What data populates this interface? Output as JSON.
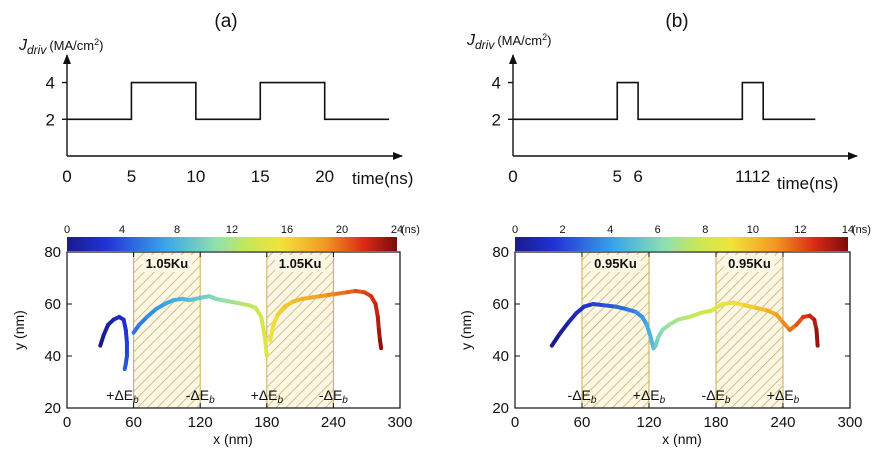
{
  "chart_data": [
    {
      "panel": "(a)",
      "type": "line",
      "ylabel_symbol": "J",
      "ylabel_sub": "driv",
      "ylabel_unit": "(MA/cm",
      "ylabel_sup": "2",
      "ylabel_close": ")",
      "xlabel": "time(ns)",
      "x_ticks": [
        "0",
        "5",
        "10",
        "15",
        "20"
      ],
      "y_ticks": [
        "2",
        "4"
      ],
      "x_range": [
        0,
        26
      ],
      "y_range": [
        0,
        5.5
      ],
      "series": [
        {
          "x": [
            0,
            5,
            5,
            10,
            10,
            15,
            15,
            20,
            20,
            25
          ],
          "y": [
            2,
            2,
            4,
            4,
            2,
            2,
            4,
            4,
            2,
            2
          ]
        }
      ]
    },
    {
      "panel": "(b)",
      "type": "line",
      "ylabel_symbol": "J",
      "ylabel_sub": "driv",
      "ylabel_unit": "(MA/cm",
      "ylabel_sup": "2",
      "ylabel_close": ")",
      "xlabel": "time(ns)",
      "x_ticks": [
        "0",
        "5",
        "6",
        "1112"
      ],
      "y_ticks": [
        "2",
        "4"
      ],
      "x_range": [
        0,
        16.5
      ],
      "y_range": [
        0,
        5.5
      ],
      "series": [
        {
          "x": [
            0,
            5,
            5,
            6,
            6,
            11,
            11,
            12,
            12,
            14.5
          ],
          "y": [
            2,
            2,
            4,
            4,
            2,
            2,
            4,
            4,
            2,
            2
          ]
        }
      ]
    },
    {
      "type": "line",
      "xlabel": "x (nm)",
      "ylabel": "y (nm)",
      "x_range": [
        0,
        300
      ],
      "y_range": [
        20,
        80
      ],
      "x_ticks": [
        "0",
        "60",
        "120",
        "180",
        "240",
        "300"
      ],
      "y_ticks": [
        "20",
        "40",
        "60",
        "80"
      ],
      "colorbar": {
        "range": [
          0,
          24
        ],
        "ticks": [
          "0",
          "4",
          "8",
          "12",
          "16",
          "20",
          "24"
        ],
        "unit": "(ns)"
      },
      "regions": [
        {
          "x": [
            60,
            120
          ],
          "label": "1.05Ku"
        },
        {
          "x": [
            180,
            240
          ],
          "label": "1.05Ku"
        }
      ],
      "annotations": [
        {
          "x": 50,
          "sign": "+",
          "text": "ΔE",
          "sub": "b"
        },
        {
          "x": 120,
          "sign": "-",
          "text": "ΔE",
          "sub": "b"
        },
        {
          "x": 180,
          "sign": "+",
          "text": "ΔE",
          "sub": "b"
        },
        {
          "x": 240,
          "sign": "-",
          "text": "ΔE",
          "sub": "b"
        }
      ],
      "series": [
        {
          "x": [
            30,
            33,
            37,
            42,
            47,
            51,
            53,
            54,
            54,
            53,
            52
          ],
          "y": [
            44,
            48,
            52,
            54,
            55,
            54,
            50,
            45,
            40,
            37,
            35
          ]
        },
        {
          "x": [
            60,
            65,
            72,
            80,
            88,
            96,
            104,
            110,
            116,
            122,
            128,
            134,
            140,
            146,
            152,
            158,
            164,
            170,
            175,
            178,
            180
          ],
          "y": [
            49,
            52,
            55,
            58,
            60,
            61.5,
            62,
            61.5,
            62,
            62.5,
            63,
            62,
            61.5,
            61,
            60.5,
            60,
            59.5,
            58.5,
            55,
            48,
            40
          ]
        },
        {
          "x": [
            183,
            186,
            190,
            196,
            204,
            212,
            220,
            228,
            236,
            244,
            252,
            260,
            268,
            274,
            278,
            280,
            281,
            282,
            283
          ],
          "y": [
            46,
            52,
            56,
            59,
            61,
            62,
            62.5,
            63,
            63.5,
            64,
            64.5,
            65,
            64.5,
            63,
            60,
            55,
            50,
            46,
            43
          ]
        }
      ]
    },
    {
      "type": "line",
      "xlabel": "x (nm)",
      "ylabel": "y (nm)",
      "x_range": [
        0,
        300
      ],
      "y_range": [
        20,
        80
      ],
      "x_ticks": [
        "0",
        "60",
        "120",
        "180",
        "240",
        "300"
      ],
      "y_ticks": [
        "20",
        "40",
        "60",
        "80"
      ],
      "colorbar": {
        "range": [
          0,
          14
        ],
        "ticks": [
          "0",
          "2",
          "4",
          "6",
          "8",
          "10",
          "12",
          "14"
        ],
        "unit": "(ns)"
      },
      "regions": [
        {
          "x": [
            60,
            120
          ],
          "label": "0.95Ku"
        },
        {
          "x": [
            180,
            240
          ],
          "label": "0.95Ku"
        }
      ],
      "annotations": [
        {
          "x": 60,
          "sign": "-",
          "text": "ΔE",
          "sub": "b"
        },
        {
          "x": 120,
          "sign": "+",
          "text": "ΔE",
          "sub": "b"
        },
        {
          "x": 180,
          "sign": "-",
          "text": "ΔE",
          "sub": "b"
        },
        {
          "x": 240,
          "sign": "+",
          "text": "ΔE",
          "sub": "b"
        }
      ],
      "series": [
        {
          "x": [
            33,
            40,
            48,
            55,
            62,
            70,
            80,
            90,
            100,
            108,
            114,
            118,
            121,
            124,
            126,
            128,
            132,
            138,
            146,
            156,
            166,
            176,
            186,
            196,
            206,
            216,
            226,
            234,
            240,
            246,
            252,
            258,
            264,
            268,
            270,
            271
          ],
          "y": [
            44,
            48.5,
            53,
            56.5,
            59,
            60,
            59.5,
            59,
            58,
            57,
            55,
            52,
            48,
            43,
            44,
            47,
            50,
            52,
            54,
            55,
            56.5,
            57.5,
            60,
            60.5,
            59.5,
            58.5,
            57.5,
            56,
            53,
            50,
            52,
            55,
            55.5,
            54,
            50,
            44
          ]
        }
      ]
    }
  ]
}
